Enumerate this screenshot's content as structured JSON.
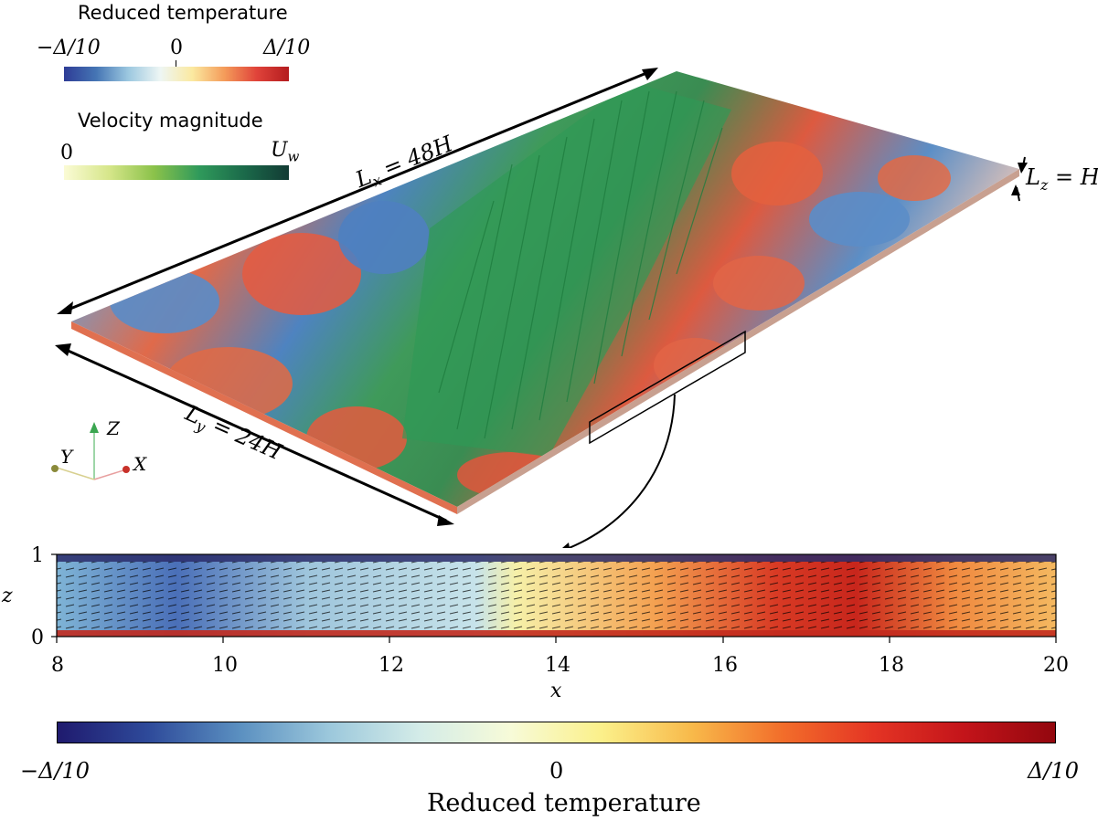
{
  "legend_temperature": {
    "title": "Reduced temperature",
    "min_label": "−Δ/10",
    "mid_label": "0",
    "max_label": "Δ/10"
  },
  "legend_velocity": {
    "title": "Velocity magnitude",
    "min_label": "0",
    "max_label": "U",
    "max_label_sub": "w"
  },
  "domain_labels": {
    "lx": "L",
    "lx_sub": "x",
    "lx_value": " = 48H",
    "ly": "L",
    "ly_sub": "y",
    "ly_value": " = 24H",
    "lz": "L",
    "lz_sub": "z",
    "lz_value": " = H"
  },
  "axes_triad": {
    "x": "X",
    "y": "Y",
    "z": "Z"
  },
  "bottom_panel": {
    "xlabel": "x",
    "ylabel": "z",
    "x_ticks": [
      "8",
      "10",
      "12",
      "14",
      "16",
      "18",
      "20"
    ],
    "y_ticks": [
      "0",
      "1"
    ]
  },
  "colorbar_bottom": {
    "title": "Reduced temperature",
    "min_label": "−Δ/10",
    "mid_label": "0",
    "max_label": "Δ/10"
  },
  "colors": {
    "cold": "#3b5fa8",
    "warm": "#e0433a",
    "streamline": "#2f9a4f"
  }
}
